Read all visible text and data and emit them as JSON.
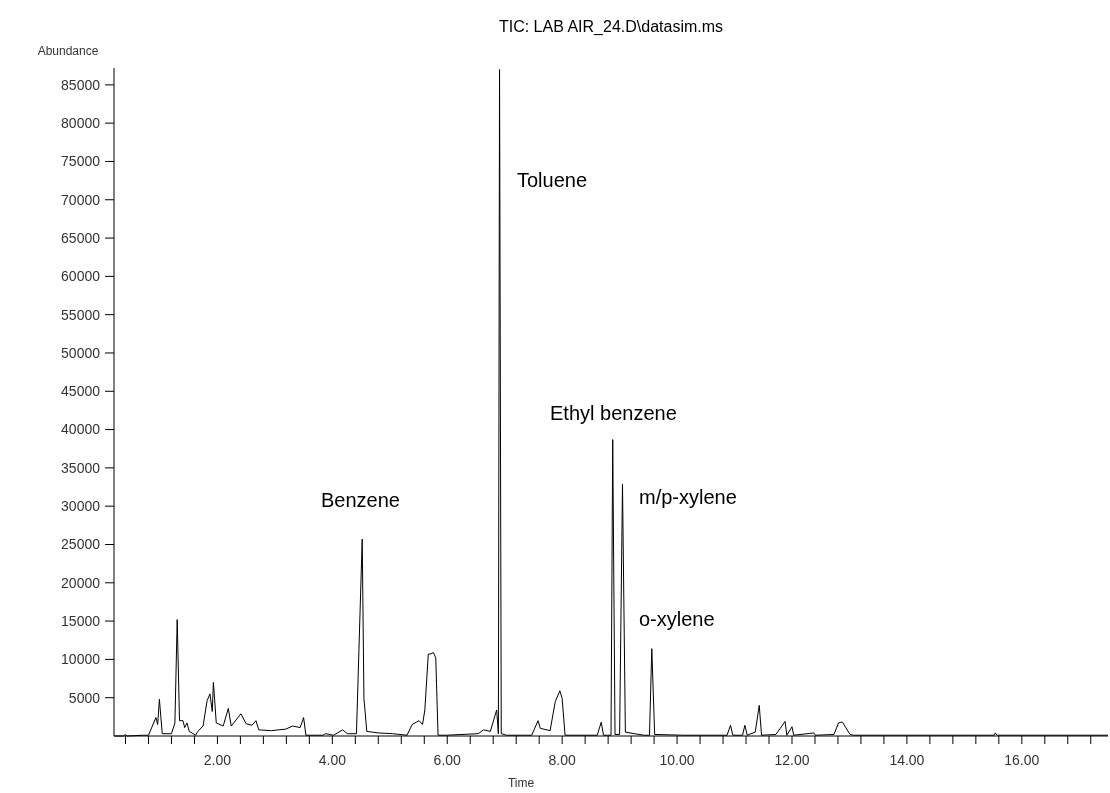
{
  "chart_data": {
    "type": "line",
    "title": "TIC: LAB AIR_24.D\\datasim.ms",
    "xlabel": "Time",
    "ylabel": "Abundance",
    "xlim": [
      0.2,
      17.5
    ],
    "ylim": [
      0,
      87200
    ],
    "xticks": [
      {
        "value": 0.4,
        "label": null
      },
      {
        "value": 0.8,
        "label": null
      },
      {
        "value": 1.2,
        "label": null
      },
      {
        "value": 1.6,
        "label": null
      },
      {
        "value": 2,
        "label": "2.00"
      },
      {
        "value": 2.4,
        "label": null
      },
      {
        "value": 2.8,
        "label": null
      },
      {
        "value": 3.2,
        "label": null
      },
      {
        "value": 3.6,
        "label": null
      },
      {
        "value": 4,
        "label": "4.00"
      },
      {
        "value": 4.4,
        "label": null
      },
      {
        "value": 4.8,
        "label": null
      },
      {
        "value": 5.2,
        "label": null
      },
      {
        "value": 5.6,
        "label": null
      },
      {
        "value": 6,
        "label": "6.00"
      },
      {
        "value": 6.4,
        "label": null
      },
      {
        "value": 6.8,
        "label": null
      },
      {
        "value": 7.2,
        "label": null
      },
      {
        "value": 7.6,
        "label": null
      },
      {
        "value": 8,
        "label": "8.00"
      },
      {
        "value": 8.4,
        "label": null
      },
      {
        "value": 8.8,
        "label": null
      },
      {
        "value": 9.2,
        "label": null
      },
      {
        "value": 9.6,
        "label": null
      },
      {
        "value": 10,
        "label": "10.00"
      },
      {
        "value": 10.4,
        "label": null
      },
      {
        "value": 10.8,
        "label": null
      },
      {
        "value": 11.2,
        "label": null
      },
      {
        "value": 11.6,
        "label": null
      },
      {
        "value": 12,
        "label": "12.00"
      },
      {
        "value": 12.4,
        "label": null
      },
      {
        "value": 12.8,
        "label": null
      },
      {
        "value": 13.2,
        "label": null
      },
      {
        "value": 13.6,
        "label": null
      },
      {
        "value": 14,
        "label": "14.00"
      },
      {
        "value": 14.4,
        "label": null
      },
      {
        "value": 14.8,
        "label": null
      },
      {
        "value": 15.2,
        "label": null
      },
      {
        "value": 15.6,
        "label": null
      },
      {
        "value": 16,
        "label": "16.00"
      },
      {
        "value": 16.4,
        "label": null
      },
      {
        "value": 16.8,
        "label": null
      },
      {
        "value": 17.2,
        "label": null
      }
    ],
    "yticks": [
      5000,
      10000,
      15000,
      20000,
      25000,
      30000,
      35000,
      40000,
      45000,
      50000,
      55000,
      60000,
      65000,
      70000,
      75000,
      80000,
      85000
    ],
    "series": [
      {
        "color": "#000000",
        "x": [
          0.2,
          0.37,
          0.39,
          0.43,
          0.71,
          0.8,
          0.93,
          0.96,
          0.99,
          1.04,
          1.2,
          1.26,
          1.3,
          1.34,
          1.4,
          1.43,
          1.47,
          1.51,
          1.62,
          1.66,
          1.75,
          1.82,
          1.87,
          1.91,
          1.93,
          1.98,
          2.1,
          2.19,
          2.24,
          2.41,
          2.5,
          2.6,
          2.67,
          2.72,
          2.94,
          3.19,
          3.31,
          3.44,
          3.5,
          3.54,
          3.84,
          3.88,
          4.02,
          4.18,
          4.26,
          4.42,
          4.52,
          4.55,
          4.6,
          4.8,
          5.05,
          5.3,
          5.39,
          5.51,
          5.57,
          5.61,
          5.67,
          5.71,
          5.76,
          5.8,
          5.84,
          5.98,
          6.54,
          6.63,
          6.75,
          6.86,
          6.89,
          6.91,
          6.94,
          7.03,
          7.28,
          7.47,
          7.58,
          7.62,
          7.79,
          7.88,
          7.96,
          8.0,
          8.05,
          8.61,
          8.68,
          8.72,
          8.85,
          8.88,
          8.92,
          9.0,
          9.05,
          9.1,
          9.42,
          9.52,
          9.56,
          9.61,
          10.12,
          10.87,
          10.93,
          10.97,
          11.14,
          11.18,
          11.22,
          11.36,
          11.43,
          11.47,
          11.72,
          11.88,
          11.91,
          12.0,
          12.03,
          12.38,
          12.41,
          12.73,
          12.81,
          12.85,
          12.88,
          12.92,
          13.01,
          13.07,
          15.52,
          15.54,
          15.57,
          17.5
        ],
        "values": [
          0,
          0,
          200,
          0,
          100,
          100,
          2400,
          1500,
          4800,
          300,
          300,
          1700,
          15200,
          2000,
          2000,
          1100,
          1700,
          600,
          100,
          600,
          1300,
          4600,
          5500,
          3200,
          7000,
          1700,
          1300,
          3600,
          1300,
          2900,
          1600,
          1400,
          2000,
          800,
          700,
          900,
          1300,
          1100,
          2400,
          100,
          100,
          300,
          100,
          800,
          300,
          300,
          25700,
          4900,
          600,
          400,
          300,
          100,
          1500,
          2000,
          1500,
          3400,
          10700,
          10700,
          10900,
          10200,
          100,
          100,
          300,
          800,
          600,
          3400,
          300,
          87000,
          300,
          100,
          100,
          100,
          2000,
          1000,
          700,
          4500,
          5900,
          4900,
          100,
          100,
          1800,
          100,
          100,
          38700,
          200,
          200,
          32900,
          500,
          100,
          100,
          11400,
          200,
          100,
          100,
          1400,
          100,
          100,
          1400,
          100,
          500,
          4000,
          100,
          200,
          1900,
          100,
          1200,
          100,
          400,
          100,
          200,
          1700,
          1800,
          1800,
          1300,
          200,
          100,
          100,
          400,
          100,
          100
        ]
      }
    ],
    "annotations": [
      "Benzene",
      "Toluene",
      "Ethyl benzene",
      "m/p-xylene",
      "o-xylene"
    ]
  }
}
